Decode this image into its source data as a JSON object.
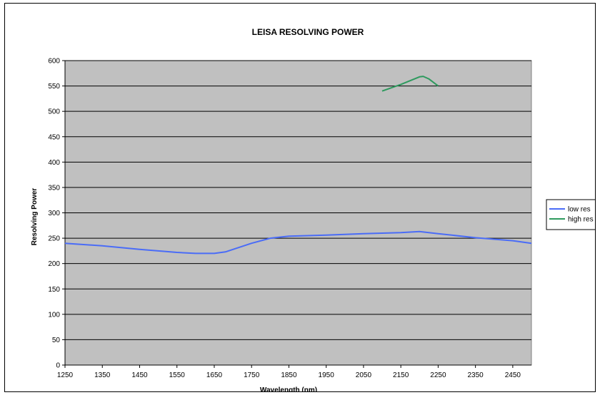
{
  "chart_data": {
    "type": "line",
    "title": "LEISA RESOLVING POWER",
    "xlabel": "Wavelength (nm)",
    "ylabel": "Resolving Power",
    "xlim": [
      1250,
      2500
    ],
    "ylim": [
      0,
      600
    ],
    "xticks": [
      1250,
      1350,
      1450,
      1550,
      1650,
      1750,
      1850,
      1950,
      2050,
      2150,
      2250,
      2350,
      2450
    ],
    "yticks": [
      0,
      50,
      100,
      150,
      200,
      250,
      300,
      350,
      400,
      450,
      500,
      550,
      600
    ],
    "grid": "horizontal",
    "plot_background": "#c0c0c0",
    "legend_position": "right",
    "series": [
      {
        "name": "low res",
        "color": "#4a6cf7",
        "points": [
          [
            1250,
            240
          ],
          [
            1350,
            235
          ],
          [
            1450,
            228
          ],
          [
            1550,
            222
          ],
          [
            1600,
            220
          ],
          [
            1650,
            220
          ],
          [
            1680,
            223
          ],
          [
            1750,
            240
          ],
          [
            1800,
            250
          ],
          [
            1850,
            254
          ],
          [
            1950,
            256
          ],
          [
            2050,
            259
          ],
          [
            2150,
            261
          ],
          [
            2200,
            263
          ],
          [
            2250,
            259
          ],
          [
            2350,
            251
          ],
          [
            2450,
            245
          ],
          [
            2500,
            240
          ]
        ]
      },
      {
        "name": "high res",
        "color": "#2e9a5e",
        "points": [
          [
            2100,
            540
          ],
          [
            2150,
            553
          ],
          [
            2200,
            568
          ],
          [
            2210,
            569
          ],
          [
            2225,
            564
          ],
          [
            2250,
            550
          ]
        ]
      }
    ]
  }
}
